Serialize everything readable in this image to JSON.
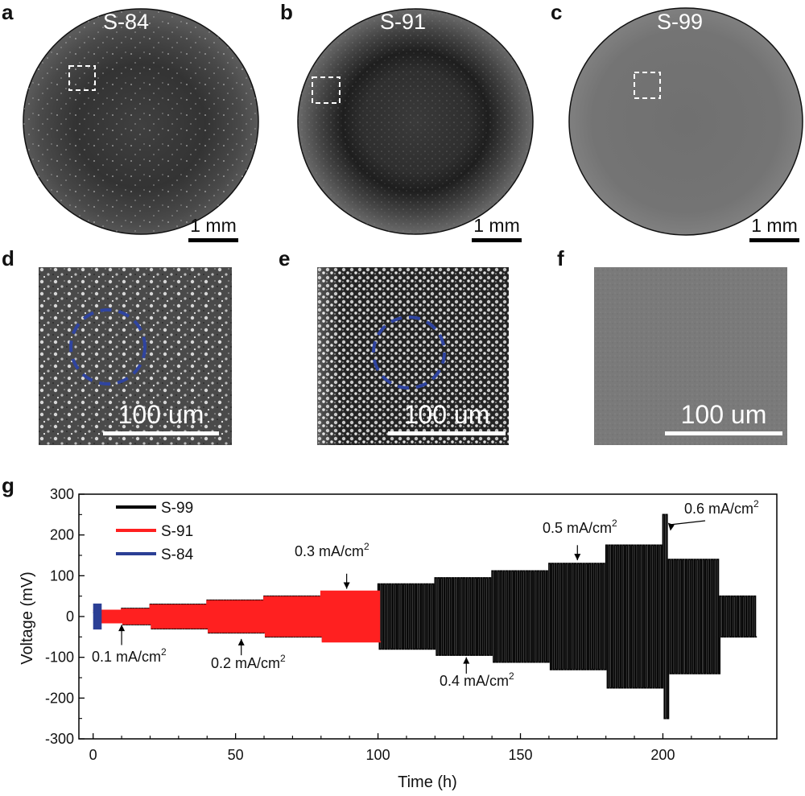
{
  "panels": {
    "a": {
      "letter": "a",
      "sample": "S-84",
      "scale": "1 mm"
    },
    "b": {
      "letter": "b",
      "sample": "S-91",
      "scale": "1 mm"
    },
    "c": {
      "letter": "c",
      "sample": "S-99",
      "scale": "1 mm"
    },
    "d": {
      "letter": "d",
      "scale": "100 um"
    },
    "e": {
      "letter": "e",
      "scale": "100 um"
    },
    "f": {
      "letter": "f",
      "scale": "100 um"
    },
    "g": {
      "letter": "g"
    }
  },
  "colors": {
    "S-99": "#000000",
    "S-91": "#ff2020",
    "S-84": "#2b3f95",
    "dash_circle": "#2f44a0"
  },
  "chart_data": {
    "type": "line",
    "xlabel": "Time (h)",
    "ylabel": "Voltage (mV)",
    "xlim": [
      -5,
      240
    ],
    "ylim": [
      -300,
      300
    ],
    "xticks": [
      0,
      50,
      100,
      150,
      200
    ],
    "yticks": [
      -300,
      -200,
      -100,
      0,
      100,
      200,
      300
    ],
    "legend_position": "top-left",
    "series": [
      {
        "name": "S-99",
        "color": "#000000",
        "segments": [
          {
            "t_start": 0,
            "t_end": 10,
            "amplitude_mV": 10
          },
          {
            "t_start": 10,
            "t_end": 20,
            "amplitude_mV": 20
          },
          {
            "t_start": 20,
            "t_end": 40,
            "amplitude_mV": 30
          },
          {
            "t_start": 40,
            "t_end": 60,
            "amplitude_mV": 40
          },
          {
            "t_start": 60,
            "t_end": 80,
            "amplitude_mV": 50
          },
          {
            "t_start": 80,
            "t_end": 100,
            "amplitude_mV": 60
          },
          {
            "t_start": 100,
            "t_end": 120,
            "amplitude_mV": 80
          },
          {
            "t_start": 120,
            "t_end": 140,
            "amplitude_mV": 95
          },
          {
            "t_start": 140,
            "t_end": 160,
            "amplitude_mV": 112
          },
          {
            "t_start": 160,
            "t_end": 180,
            "amplitude_mV": 130
          },
          {
            "t_start": 180,
            "t_end": 200,
            "amplitude_mV": 175
          },
          {
            "t_start": 200,
            "t_end": 202,
            "amplitude_mV": 250
          },
          {
            "t_start": 202,
            "t_end": 220,
            "amplitude_mV": 140
          },
          {
            "t_start": 220,
            "t_end": 233,
            "amplitude_mV": 50
          }
        ]
      },
      {
        "name": "S-91",
        "color": "#ff2020",
        "segments": [
          {
            "t_start": 0,
            "t_end": 10,
            "amplitude_mV": 15
          },
          {
            "t_start": 10,
            "t_end": 20,
            "amplitude_mV": 18
          },
          {
            "t_start": 20,
            "t_end": 40,
            "amplitude_mV": 28
          },
          {
            "t_start": 40,
            "t_end": 60,
            "amplitude_mV": 38
          },
          {
            "t_start": 60,
            "t_end": 80,
            "amplitude_mV": 48
          },
          {
            "t_start": 80,
            "t_end": 101,
            "amplitude_mV": 62
          }
        ]
      },
      {
        "name": "S-84",
        "color": "#2b3f95",
        "segments": [
          {
            "t_start": 0,
            "t_end": 3,
            "amplitude_mV": 30
          }
        ]
      }
    ],
    "annotations": [
      {
        "id": "a01",
        "base": "0.1 mA/cm",
        "sup": "2",
        "arrow_t": 10,
        "arrow_v_from": -70,
        "arrow_v_to": -20
      },
      {
        "id": "a02",
        "base": "0.2 mA/cm",
        "sup": "2",
        "arrow_t": 52,
        "arrow_v_from": -95,
        "arrow_v_to": -55
      },
      {
        "id": "a03",
        "base": "0.3 mA/cm",
        "sup": "2",
        "arrow_t": 89,
        "arrow_v_from": 105,
        "arrow_v_to": 68
      },
      {
        "id": "a04",
        "base": "0.4 mA/cm",
        "sup": "2",
        "arrow_t": 131,
        "arrow_v_from": -140,
        "arrow_v_to": -100
      },
      {
        "id": "a05",
        "base": "0.5 mA/cm",
        "sup": "2",
        "arrow_t": 170,
        "arrow_v_from": 175,
        "arrow_v_to": 138
      },
      {
        "id": "a06",
        "base": "0.6 mA/cm",
        "sup": "2",
        "arrow_t": 203,
        "arrow_v_from": 230,
        "arrow_v_to": 265
      }
    ]
  }
}
